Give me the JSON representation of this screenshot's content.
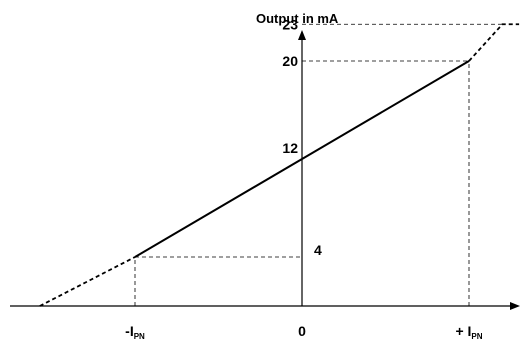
{
  "chart_data": {
    "type": "line",
    "ylabel": "Output in mA",
    "x_ticks": [
      {
        "prefix": "-I",
        "sub": "PN",
        "value": -1
      },
      {
        "prefix": "0",
        "sub": "",
        "value": 0
      },
      {
        "prefix": "+ I",
        "sub": "PN",
        "value": 1
      }
    ],
    "y_ticks": [
      {
        "label": "4",
        "value": 4
      },
      {
        "label": "12",
        "value": 12
      },
      {
        "label": "20",
        "value": 20
      },
      {
        "label": "23",
        "value": 23
      }
    ],
    "series": [
      {
        "style": "solid",
        "points": [
          [
            -1,
            4
          ],
          [
            1,
            20
          ]
        ]
      },
      {
        "style": "dashed",
        "points": [
          [
            -1.57,
            0
          ],
          [
            -1,
            4
          ]
        ]
      },
      {
        "style": "dashed",
        "points": [
          [
            1,
            20
          ],
          [
            1.2,
            23
          ],
          [
            1.3,
            23
          ]
        ]
      }
    ],
    "reference_lines": [
      {
        "from": [
          -1,
          0
        ],
        "to": [
          -1,
          4
        ]
      },
      {
        "from": [
          -1,
          4
        ],
        "to": [
          0,
          4
        ]
      },
      {
        "from": [
          1,
          0
        ],
        "to": [
          1,
          20
        ]
      },
      {
        "from": [
          0,
          20
        ],
        "to": [
          1,
          20
        ]
      },
      {
        "from": [
          0,
          23
        ],
        "to": [
          1.2,
          23
        ]
      }
    ],
    "colors": {
      "line": "#000000",
      "background": "#ffffff"
    }
  }
}
